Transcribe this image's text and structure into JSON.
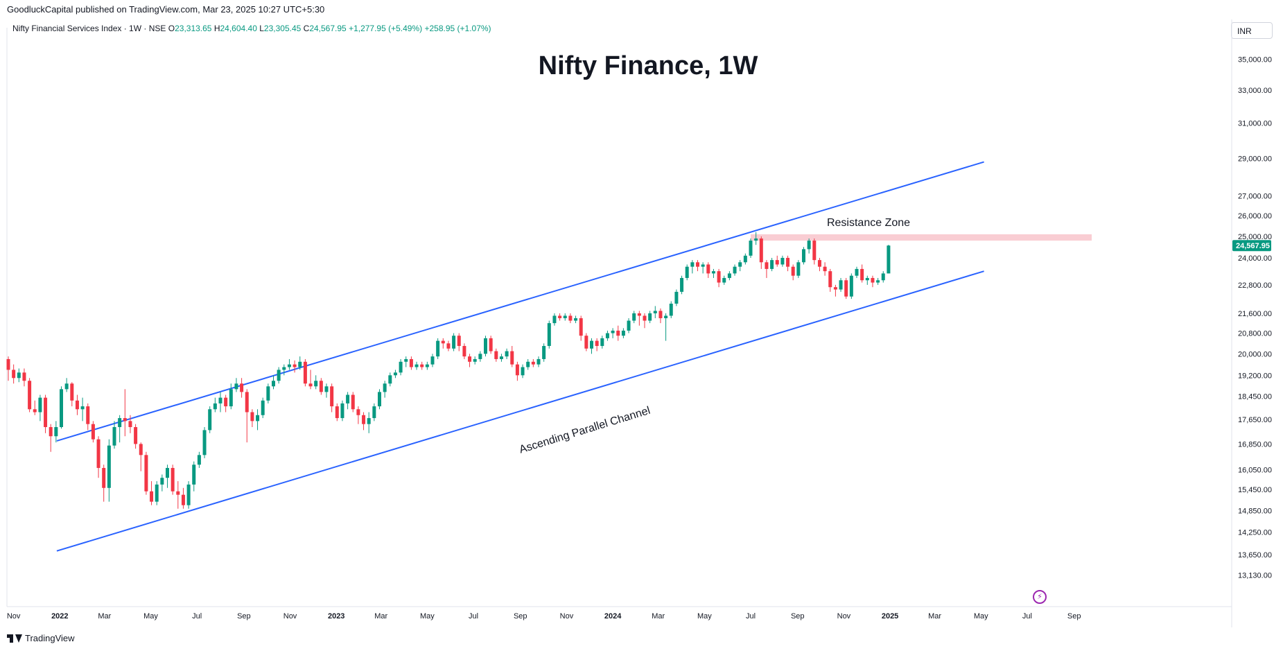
{
  "header": {
    "publisher": "GoodluckCapital published on TradingView.com, Mar 23, 2025 10:27 UTC+5:30"
  },
  "legend": {
    "symbol": "Nifty Financial Services Index · 1W · NSE",
    "open_label": "O",
    "open": "23,313.65",
    "high_label": "H",
    "high": "24,604.40",
    "low_label": "L",
    "low": "23,305.45",
    "close_label": "C",
    "close": "24,567.95",
    "change": "+1,277.95 (+5.49%)",
    "extra": "+258.95 (+1.07%)"
  },
  "currency": "INR",
  "footer": {
    "brand": "TradingView"
  },
  "colors": {
    "up": "#089981",
    "down": "#f23645",
    "channel": "#2962ff",
    "resistance": "#f8c8ce",
    "price_tag": "#089981",
    "bolt": "#9c27b0"
  },
  "chart_data": {
    "type": "candlestick",
    "title": "Nifty Finance, 1W",
    "price_scale": "log",
    "ylim": [
      12700,
      36200
    ],
    "y_ticks": [
      "35,000.00",
      "33,000.00",
      "31,000.00",
      "29,000.00",
      "27,000.00",
      "26,000.00",
      "25,000.00",
      "24,000.00",
      "22,800.00",
      "21,600.00",
      "20,800.00",
      "20,000.00",
      "19,200.00",
      "18,450.00",
      "17,650.00",
      "16,850.00",
      "16,050.00",
      "15,450.00",
      "14,850.00",
      "14,250.00",
      "13,650.00",
      "13,130.00"
    ],
    "x_labels": [
      "Nov",
      "2022",
      "Mar",
      "May",
      "Jul",
      "Sep",
      "Nov",
      "2023",
      "Mar",
      "May",
      "Jul",
      "Sep",
      "Nov",
      "2024",
      "Mar",
      "May",
      "Jul",
      "Sep",
      "Nov",
      "2025",
      "Mar",
      "May",
      "Jul",
      "Sep"
    ],
    "last_price_tag": "24,567.95",
    "annotations": {
      "resistance_label": "Resistance Zone",
      "resistance_zone": [
        24800,
        25100
      ],
      "channel_label": "Ascending Parallel Channel",
      "channel": {
        "upper": [
          {
            "date": "2021-12-28",
            "price": 16950
          },
          {
            "date": "2025-05-05",
            "price": 28800
          }
        ],
        "lower": [
          {
            "date": "2021-12-28",
            "price": 13750
          },
          {
            "date": "2025-05-05",
            "price": 23400
          }
        ]
      }
    },
    "candles": [
      [
        19800,
        19400,
        19900,
        19000
      ],
      [
        19400,
        19100,
        19600,
        18900
      ],
      [
        19100,
        19300,
        19450,
        18950
      ],
      [
        19300,
        19000,
        19450,
        18800
      ],
      [
        19000,
        18000,
        19100,
        17900
      ],
      [
        18000,
        17900,
        18300,
        17800
      ],
      [
        17900,
        18400,
        18500,
        17600
      ],
      [
        18400,
        17400,
        18500,
        17200
      ],
      [
        17400,
        17100,
        17500,
        16600
      ],
      [
        17100,
        17400,
        17600,
        16900
      ],
      [
        17400,
        18700,
        18800,
        17350
      ],
      [
        18700,
        18900,
        19100,
        18600
      ],
      [
        18900,
        18300,
        18950,
        18100
      ],
      [
        18300,
        18000,
        18500,
        17800
      ],
      [
        18000,
        18100,
        18400,
        17600
      ],
      [
        18100,
        17500,
        18200,
        17300
      ],
      [
        17500,
        17000,
        17600,
        16900
      ],
      [
        17000,
        16100,
        17100,
        15800
      ],
      [
        16100,
        15500,
        16200,
        15100
      ],
      [
        15500,
        16800,
        17000,
        15100
      ],
      [
        16800,
        17400,
        17600,
        16700
      ],
      [
        17400,
        17700,
        17800,
        16900
      ],
      [
        17700,
        17600,
        18700,
        17100
      ],
      [
        17600,
        17400,
        17800,
        17200
      ],
      [
        17400,
        16850,
        17500,
        16700
      ],
      [
        16850,
        16500,
        16900,
        16000
      ],
      [
        16500,
        15400,
        16600,
        15300
      ],
      [
        15400,
        15100,
        15700,
        15000
      ],
      [
        15100,
        15600,
        15700,
        15000
      ],
      [
        15600,
        15800,
        15900,
        15400
      ],
      [
        15800,
        16100,
        16200,
        15500
      ],
      [
        16100,
        15400,
        16200,
        15300
      ],
      [
        15400,
        15300,
        15700,
        14900
      ],
      [
        15300,
        15000,
        15500,
        14900
      ],
      [
        15000,
        15600,
        15700,
        14900
      ],
      [
        15600,
        16200,
        16300,
        15400
      ],
      [
        16200,
        16500,
        16600,
        16100
      ],
      [
        16500,
        17300,
        17400,
        16400
      ],
      [
        17300,
        18000,
        18100,
        17200
      ],
      [
        18000,
        18200,
        18400,
        17900
      ],
      [
        18200,
        18400,
        18600,
        17900
      ],
      [
        18400,
        18100,
        18500,
        17900
      ],
      [
        18100,
        18700,
        18900,
        18000
      ],
      [
        18700,
        18900,
        19100,
        18600
      ],
      [
        18900,
        18600,
        19100,
        18400
      ],
      [
        18600,
        17900,
        18700,
        16900
      ],
      [
        17900,
        17600,
        18000,
        17400
      ],
      [
        17600,
        17800,
        18000,
        17300
      ],
      [
        17800,
        18300,
        18400,
        17700
      ],
      [
        18300,
        18800,
        18900,
        18200
      ],
      [
        18800,
        19000,
        19200,
        18700
      ],
      [
        19000,
        19400,
        19500,
        18900
      ],
      [
        19400,
        19500,
        19600,
        19200
      ],
      [
        19500,
        19600,
        19800,
        19400
      ],
      [
        19600,
        19500,
        19750,
        19300
      ],
      [
        19500,
        19700,
        19900,
        19400
      ],
      [
        19700,
        18900,
        19800,
        18800
      ],
      [
        18900,
        18800,
        19400,
        18700
      ],
      [
        18800,
        19000,
        19200,
        18700
      ],
      [
        19000,
        18600,
        19100,
        18500
      ],
      [
        18600,
        18800,
        18900,
        18400
      ],
      [
        18800,
        18100,
        18900,
        17900
      ],
      [
        18100,
        17700,
        18200,
        17600
      ],
      [
        17700,
        18200,
        18300,
        17600
      ],
      [
        18200,
        18500,
        18600,
        18000
      ],
      [
        18500,
        18000,
        18600,
        17900
      ],
      [
        18000,
        17800,
        18100,
        17500
      ],
      [
        17800,
        17500,
        17900,
        17300
      ],
      [
        17500,
        17700,
        17900,
        17200
      ],
      [
        17700,
        18100,
        18200,
        17600
      ],
      [
        18100,
        18600,
        18700,
        18000
      ],
      [
        18600,
        18900,
        19000,
        18400
      ],
      [
        18900,
        19200,
        19300,
        18800
      ],
      [
        19200,
        19300,
        19400,
        19100
      ],
      [
        19300,
        19700,
        19800,
        19200
      ],
      [
        19700,
        19800,
        19900,
        19500
      ],
      [
        19800,
        19500,
        19900,
        19400
      ],
      [
        19500,
        19600,
        19700,
        19400
      ],
      [
        19600,
        19500,
        19700,
        19400
      ],
      [
        19500,
        19600,
        19700,
        19400
      ],
      [
        19600,
        19900,
        20000,
        19500
      ],
      [
        19900,
        20500,
        20600,
        19800
      ],
      [
        20500,
        20400,
        20600,
        20200
      ],
      [
        20400,
        20200,
        20500,
        20100
      ],
      [
        20200,
        20700,
        20800,
        20100
      ],
      [
        20700,
        20300,
        20800,
        20100
      ],
      [
        20300,
        19900,
        20400,
        19800
      ],
      [
        19900,
        19700,
        20000,
        19500
      ],
      [
        19700,
        19800,
        19900,
        19600
      ],
      [
        19800,
        20000,
        20100,
        19700
      ],
      [
        20000,
        20600,
        20700,
        19900
      ],
      [
        20600,
        20100,
        20700,
        20000
      ],
      [
        20100,
        19800,
        20200,
        19700
      ],
      [
        19800,
        19900,
        20000,
        19700
      ],
      [
        19900,
        20100,
        20200,
        19800
      ],
      [
        20100,
        19600,
        20300,
        19500
      ],
      [
        19600,
        19200,
        19700,
        19000
      ],
      [
        19200,
        19500,
        19600,
        19100
      ],
      [
        19500,
        19700,
        19800,
        19400
      ],
      [
        19700,
        19600,
        19800,
        19500
      ],
      [
        19600,
        19800,
        19900,
        19500
      ],
      [
        19800,
        20300,
        20400,
        19700
      ],
      [
        20300,
        21200,
        21300,
        20200
      ],
      [
        21200,
        21500,
        21600,
        21100
      ],
      [
        21500,
        21400,
        21600,
        21300
      ],
      [
        21400,
        21500,
        21600,
        21300
      ],
      [
        21500,
        21300,
        21600,
        21200
      ],
      [
        21300,
        21400,
        21500,
        21200
      ],
      [
        21400,
        20700,
        21500,
        20500
      ],
      [
        20700,
        20200,
        20800,
        20100
      ],
      [
        20200,
        20500,
        20600,
        20000
      ],
      [
        20500,
        20300,
        20600,
        20100
      ],
      [
        20300,
        20600,
        20700,
        20200
      ],
      [
        20600,
        20800,
        20900,
        20500
      ],
      [
        20800,
        20900,
        21000,
        20600
      ],
      [
        20900,
        20700,
        21100,
        20500
      ],
      [
        20700,
        20900,
        21000,
        20600
      ],
      [
        20900,
        21300,
        21400,
        20800
      ],
      [
        21300,
        21600,
        21700,
        21200
      ],
      [
        21600,
        21500,
        21700,
        21100
      ],
      [
        21500,
        21300,
        21600,
        21000
      ],
      [
        21300,
        21600,
        21700,
        21200
      ],
      [
        21600,
        21700,
        21900,
        21400
      ],
      [
        21700,
        21400,
        21800,
        21200
      ],
      [
        21400,
        21500,
        21600,
        20500
      ],
      [
        21500,
        22000,
        22100,
        21400
      ],
      [
        22000,
        22500,
        22600,
        21900
      ],
      [
        22500,
        23100,
        23200,
        22400
      ],
      [
        23100,
        23600,
        23700,
        23000
      ],
      [
        23600,
        23800,
        23900,
        23300
      ],
      [
        23800,
        23600,
        23900,
        23400
      ],
      [
        23600,
        23700,
        23800,
        23300
      ],
      [
        23700,
        23300,
        23800,
        23100
      ],
      [
        23300,
        23400,
        23500,
        23100
      ],
      [
        23400,
        22900,
        23500,
        22700
      ],
      [
        22900,
        23100,
        23200,
        22800
      ],
      [
        23100,
        23300,
        23400,
        23000
      ],
      [
        23300,
        23600,
        23700,
        23200
      ],
      [
        23600,
        23800,
        23900,
        23400
      ],
      [
        23800,
        24100,
        24200,
        23700
      ],
      [
        24100,
        24800,
        24900,
        24000
      ],
      [
        24800,
        24900,
        25200,
        24600
      ],
      [
        24900,
        23800,
        25000,
        23500
      ],
      [
        23800,
        23500,
        23900,
        23100
      ],
      [
        23500,
        23900,
        24000,
        23400
      ],
      [
        23900,
        23700,
        24100,
        23600
      ],
      [
        23700,
        24000,
        24100,
        23600
      ],
      [
        24000,
        23600,
        24100,
        23400
      ],
      [
        23600,
        23200,
        23700,
        23000
      ],
      [
        23200,
        23800,
        23900,
        23100
      ],
      [
        23800,
        24400,
        24500,
        23700
      ],
      [
        24400,
        24800,
        24900,
        24200
      ],
      [
        24800,
        23900,
        24900,
        23700
      ],
      [
        23900,
        23600,
        24000,
        23400
      ],
      [
        23600,
        23400,
        23800,
        23200
      ],
      [
        23400,
        22700,
        23500,
        22500
      ],
      [
        22700,
        22600,
        22800,
        22300
      ],
      [
        22600,
        23000,
        23100,
        22500
      ],
      [
        23000,
        22300,
        23100,
        22200
      ],
      [
        22300,
        23200,
        23300,
        22200
      ],
      [
        23200,
        23500,
        23600,
        23100
      ],
      [
        23500,
        23000,
        23700,
        22900
      ],
      [
        23000,
        23100,
        23200,
        22800
      ],
      [
        23100,
        22900,
        23200,
        22700
      ],
      [
        22900,
        23000,
        23100,
        22800
      ],
      [
        23000,
        23300,
        23400,
        22900
      ],
      [
        23300,
        24568,
        24604,
        23305
      ]
    ]
  }
}
